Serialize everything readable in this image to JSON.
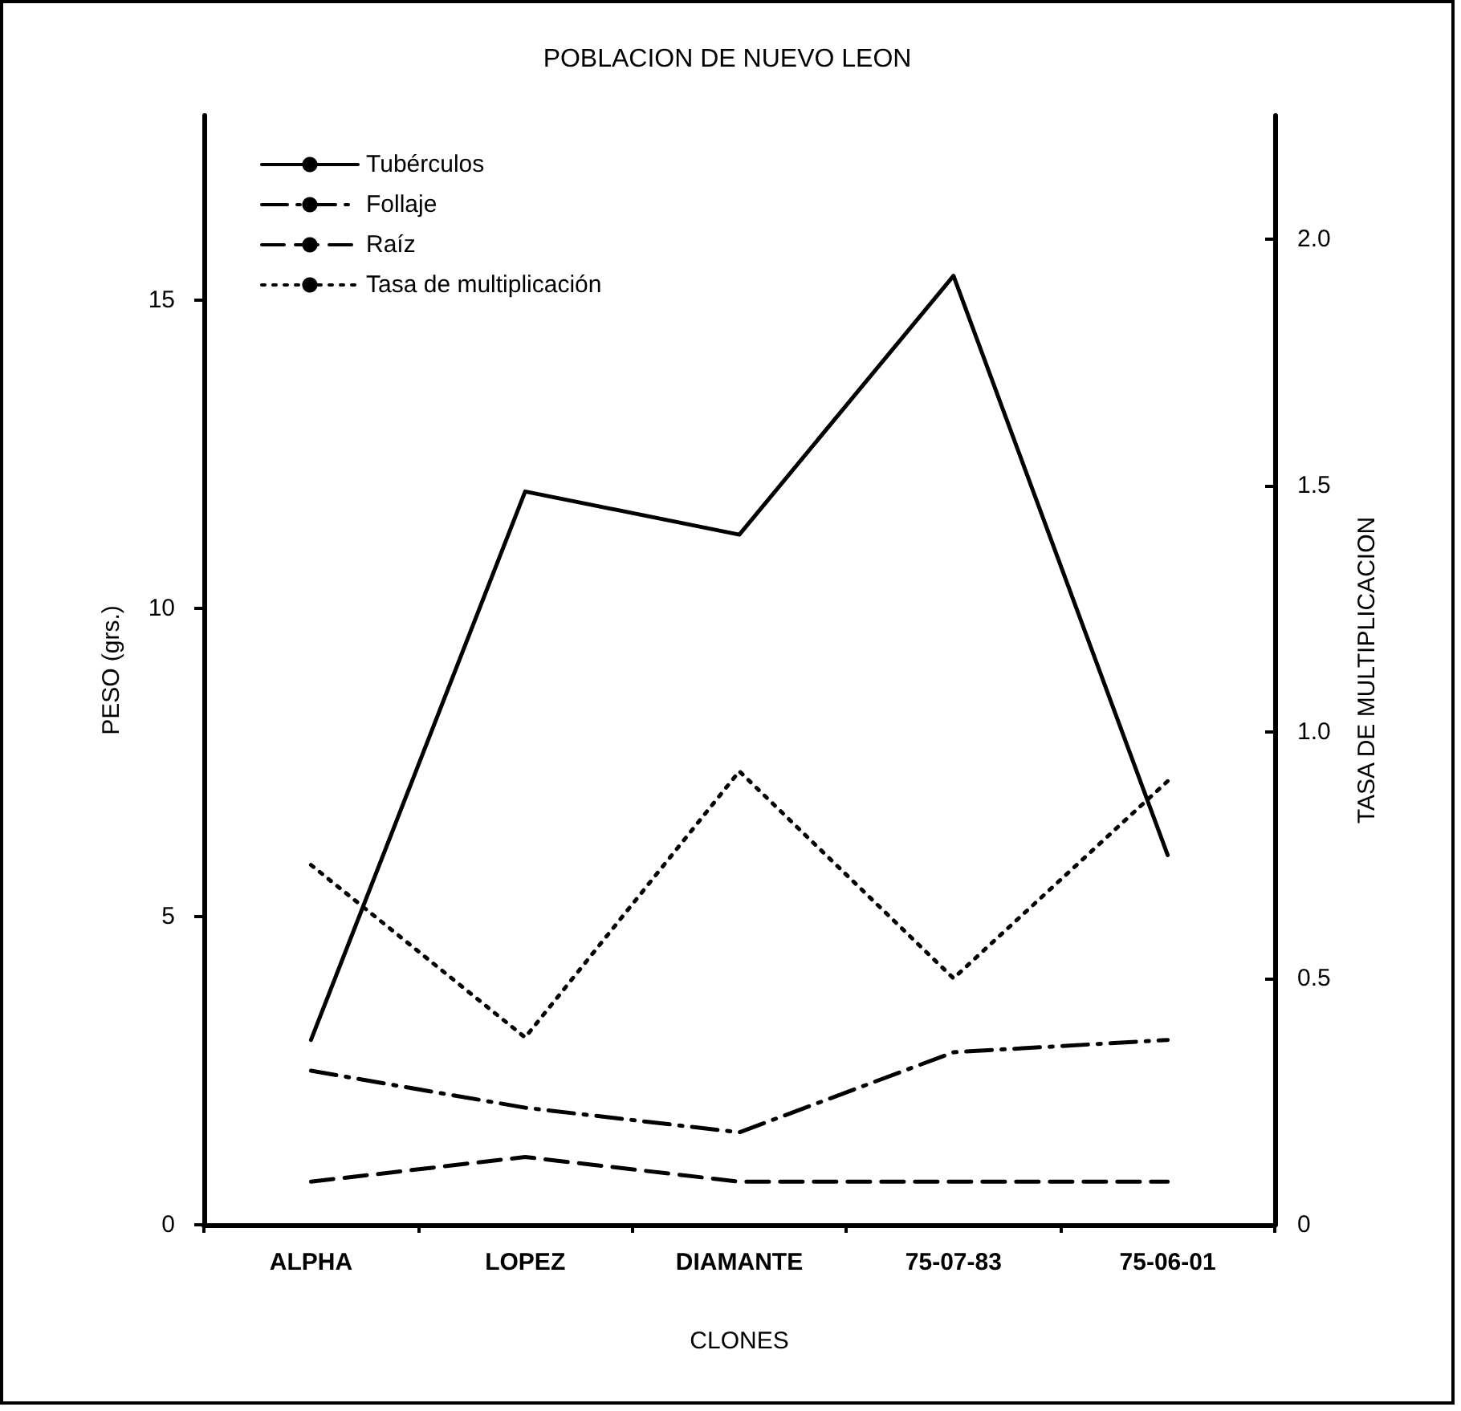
{
  "chart_data": {
    "type": "line",
    "title": "POBLACION DE NUEVO LEON",
    "xlabel": "CLONES",
    "ylabel": "PESO (grs.)",
    "y2label": "TASA DE MULTIPLICACION",
    "categories": [
      "ALPHA",
      "LOPEZ",
      "DIAMANTE",
      "75-07-83",
      "75-06-01"
    ],
    "series": [
      {
        "name": "Tubérculos",
        "color": "#000000",
        "line_style": "solid",
        "values": [
          3.0,
          11.9,
          11.2,
          15.4,
          6.0
        ]
      },
      {
        "name": "Follaje",
        "color": "#000000",
        "line_style": "dashdot",
        "values": [
          2.5,
          1.9,
          1.5,
          2.8,
          3.0
        ]
      },
      {
        "name": "Raíz",
        "color": "#000000",
        "line_style": "dashed",
        "values": [
          0.7,
          1.1,
          0.7,
          0.7,
          0.7
        ]
      },
      {
        "name": "Tasa de multiplicación",
        "color": "#000000",
        "line_style": "dotted",
        "axis": "y2",
        "values": [
          0.73,
          0.38,
          0.92,
          0.5,
          0.9
        ]
      }
    ],
    "ylim": [
      0,
      18
    ],
    "yticks": [
      0,
      5,
      10,
      15
    ],
    "y2lim": [
      0,
      2.25
    ],
    "y2ticks": [
      0,
      {
        "value": 0.5,
        "label": "0.5"
      },
      {
        "value": 1,
        "label": "1.0"
      },
      {
        "value": 1.5,
        "label": "1.5"
      },
      {
        "value": 2,
        "label": "2.0"
      }
    ],
    "grid": false,
    "legend": "top left",
    "marker": "none"
  }
}
